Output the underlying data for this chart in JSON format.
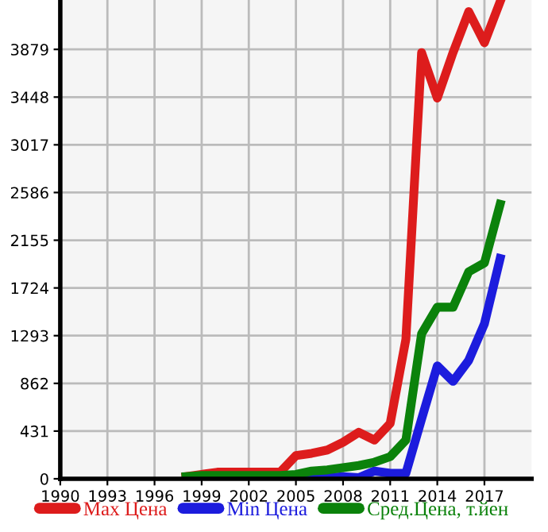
{
  "chart_data": {
    "type": "line",
    "x": [
      1998,
      1999,
      2000,
      2001,
      2002,
      2003,
      2004,
      2005,
      2006,
      2007,
      2008,
      2009,
      2010,
      2011,
      2012,
      2013,
      2014,
      2015,
      2016,
      2017,
      2018
    ],
    "series": [
      {
        "name": "Max Цена",
        "color": "#dd1c1c",
        "values": [
          20,
          40,
          60,
          60,
          60,
          60,
          60,
          210,
          230,
          260,
          330,
          420,
          350,
          500,
          1260,
          3850,
          3440,
          3850,
          4220,
          3940,
          4310
        ]
      },
      {
        "name": "Min Цена",
        "color": "#1c1cdd",
        "values": [
          null,
          null,
          null,
          null,
          null,
          null,
          0,
          0,
          10,
          10,
          20,
          10,
          70,
          50,
          50,
          540,
          1020,
          880,
          1070,
          1400,
          1990
        ]
      },
      {
        "name": "Сред.Цена, т.йен",
        "color": "#0b820b",
        "values": [
          20,
          30,
          30,
          30,
          30,
          30,
          30,
          40,
          70,
          80,
          100,
          120,
          150,
          200,
          350,
          1310,
          1550,
          1550,
          1870,
          1950,
          2480
        ]
      }
    ],
    "xlim": [
      1990,
      2020
    ],
    "xticks": [
      1990,
      1993,
      1996,
      1999,
      2002,
      2005,
      2008,
      2011,
      2014,
      2017
    ],
    "ylim": [
      0,
      4325
    ],
    "yticks": [
      0,
      431,
      862,
      1293,
      1724,
      2155,
      2586,
      3017,
      3448,
      3879
    ],
    "grid": true,
    "legend": "bottom",
    "marker": "none",
    "line_style": "solid"
  }
}
